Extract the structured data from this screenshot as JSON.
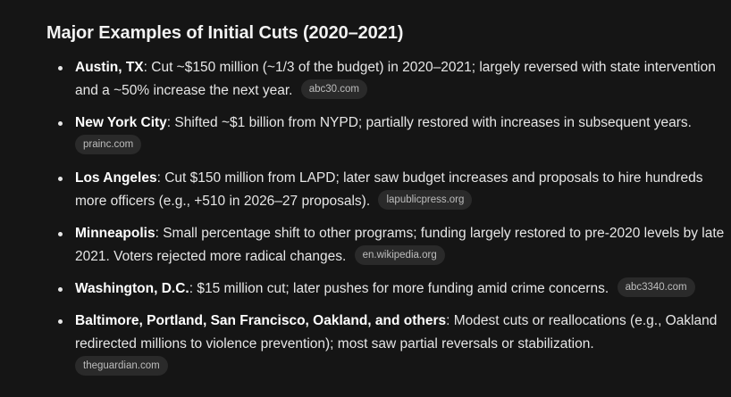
{
  "heading": "Major Examples of Initial Cuts (2020–2021)",
  "items": [
    {
      "label": "Austin, TX",
      "text": ": Cut ~$150 million (~1/3 of the budget) in 2020–2021; largely reversed with state intervention and a ~50% increase the next year.",
      "source": "abc30.com"
    },
    {
      "label": "New York City",
      "text": ": Shifted ~$1 billion from NYPD; partially restored with increases in subsequent years.",
      "source": "prainc.com"
    },
    {
      "label": "Los Angeles",
      "text": ": Cut $150 million from LAPD; later saw budget increases and proposals to hire hundreds more officers (e.g., +510 in 2026–27 proposals).",
      "source": "lapublicpress.org"
    },
    {
      "label": "Minneapolis",
      "text": ": Small percentage shift to other programs; funding largely restored to pre-2020 levels by late 2021. Voters rejected more radical changes.",
      "source": "en.wikipedia.org"
    },
    {
      "label": "Washington, D.C.",
      "text": ": $15 million cut; later pushes for more funding amid crime concerns.",
      "source": "abc3340.com"
    },
    {
      "label": "Baltimore, Portland, San Francisco, Oakland, and others",
      "text": ": Modest cuts or reallocations (e.g., Oakland redirected millions to violence prevention); most saw partial reversals or stabilization.",
      "source": "theguardian.com"
    }
  ]
}
